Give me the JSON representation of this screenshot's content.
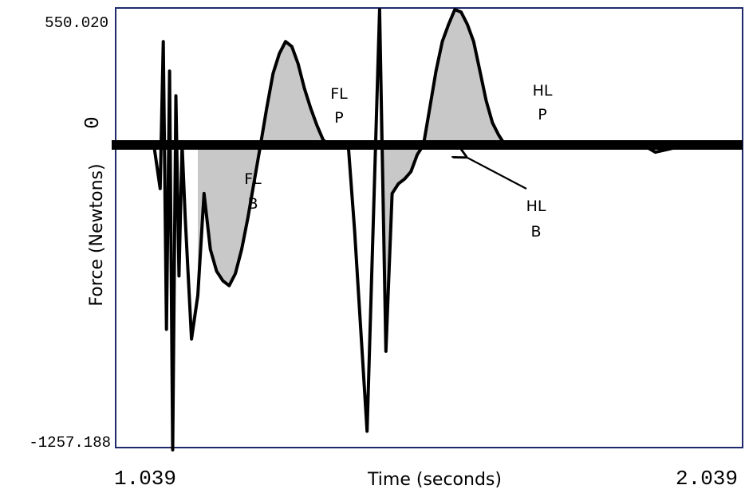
{
  "chart_data": {
    "type": "line",
    "title": "",
    "xlabel": "Time (seconds)",
    "ylabel": "Force (Newtons)",
    "xlim": [
      1.039,
      2.039
    ],
    "ylim": [
      -1257.188,
      550.02
    ],
    "x_tick_labels": [
      "1.039",
      "2.039"
    ],
    "y_tick_labels": [
      "550.020",
      "0",
      "-1257.188"
    ],
    "grid": false,
    "legend": "none",
    "series": [
      {
        "x": [
          1.039,
          1.06,
          1.08,
          1.1,
          1.11,
          1.115,
          1.12,
          1.125,
          1.13,
          1.135,
          1.14,
          1.145,
          1.15,
          1.16,
          1.17,
          1.18,
          1.19,
          1.2,
          1.21,
          1.22,
          1.23,
          1.24,
          1.25,
          1.26,
          1.27,
          1.28,
          1.29,
          1.3,
          1.31,
          1.32,
          1.33,
          1.34,
          1.35,
          1.36,
          1.37,
          1.38,
          1.39,
          1.4,
          1.41,
          1.42,
          1.44,
          1.46,
          1.47,
          1.48,
          1.49,
          1.5,
          1.51,
          1.52,
          1.53,
          1.54,
          1.55,
          1.56,
          1.57,
          1.58,
          1.59,
          1.6,
          1.61,
          1.62,
          1.63,
          1.64,
          1.65,
          1.66,
          1.67,
          1.68,
          1.69,
          1.7,
          1.72,
          1.74,
          1.76,
          1.78,
          1.8,
          1.84,
          1.88,
          1.9,
          1.95,
          2.0,
          2.039
        ],
        "y": [
          0,
          0,
          0,
          0,
          -180,
          420,
          -760,
          300,
          -1257,
          200,
          -540,
          0,
          -300,
          -800,
          -620,
          -200,
          -430,
          -520,
          -560,
          -580,
          -530,
          -430,
          -300,
          -150,
          0,
          150,
          290,
          370,
          420,
          400,
          330,
          230,
          150,
          80,
          20,
          0,
          0,
          0,
          0,
          -350,
          -1180,
          550,
          -850,
          -200,
          -160,
          -140,
          -110,
          -40,
          0,
          150,
          300,
          420,
          490,
          550,
          540,
          490,
          420,
          300,
          180,
          90,
          40,
          0,
          10,
          0,
          0,
          0,
          5,
          0,
          0,
          0,
          0,
          0,
          0,
          -30,
          0,
          0,
          0
        ]
      }
    ],
    "annotations": [
      "FL B",
      "FL P",
      "HL P",
      "HL B"
    ]
  },
  "labels": {
    "y_top": "550.020",
    "y_zero": "0",
    "y_bottom": "-1257.188",
    "x_start": "1.039",
    "x_end": "2.039",
    "x_title": "Time (seconds)",
    "y_title": "Force (Newtons)",
    "fl_b_line1": "FL",
    "fl_b_line2": "B",
    "fl_p_line1": "FL",
    "fl_p_line2": "P",
    "hl_p_line1": "HL",
    "hl_p_line2": "P",
    "hl_b_line1": "HL",
    "hl_b_line2": "B"
  },
  "colors": {
    "frame": "#1f2a6b",
    "trace": "#000000",
    "fill": "#c8c8c8"
  }
}
